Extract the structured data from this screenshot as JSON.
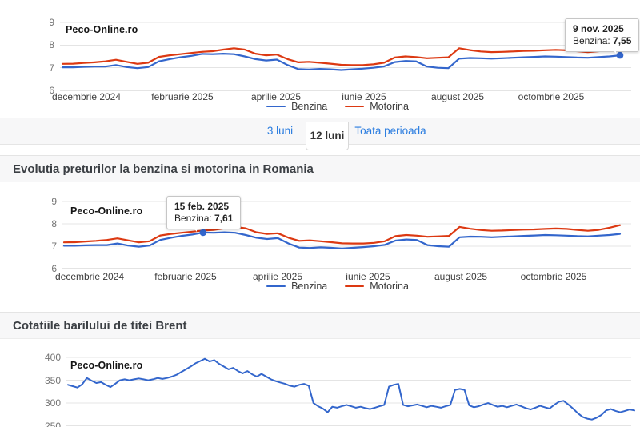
{
  "watermark": "Peco-Online.ro",
  "tabs": {
    "items": [
      {
        "label": "3 luni"
      },
      {
        "label": "12 luni"
      },
      {
        "label": "Toata perioada"
      }
    ],
    "active": "12 luni"
  },
  "headings": {
    "fuel": "Evolutia preturilor la benzina si motorina in Romania",
    "brent": "Cotatiile barilului de titei Brent"
  },
  "colors": {
    "benzina": "#3366cc",
    "motorina": "#dc3912",
    "brent_line": "#3366cc",
    "grid": "#e4e4e4",
    "baseline": "#c9c9c9",
    "tab_link": "#2b7de0"
  },
  "chart_data": [
    {
      "id": "fuel-prices-top",
      "type": "line",
      "title": "",
      "ylim": [
        6,
        9
      ],
      "y_ticks": [
        9,
        8,
        7,
        6
      ],
      "x_labels": [
        "decembrie 2024",
        "februarie 2025",
        "aprilie 2025",
        "iunie 2025",
        "august 2025",
        "octombrie 2025"
      ],
      "legend_position": "bottom",
      "grid": true,
      "series": [
        {
          "name": "Benzina",
          "color": "#3366cc",
          "values": [
            7.02,
            7.02,
            7.04,
            7.05,
            7.05,
            7.12,
            7.03,
            6.98,
            7.03,
            7.28,
            7.38,
            7.46,
            7.52,
            7.61,
            7.6,
            7.62,
            7.6,
            7.5,
            7.38,
            7.32,
            7.36,
            7.12,
            6.94,
            6.92,
            6.95,
            6.93,
            6.9,
            6.93,
            6.96,
            7.0,
            7.06,
            7.25,
            7.3,
            7.28,
            7.05,
            7.0,
            6.98,
            7.4,
            7.43,
            7.42,
            7.4,
            7.42,
            7.44,
            7.46,
            7.48,
            7.5,
            7.49,
            7.47,
            7.45,
            7.44,
            7.47,
            7.5,
            7.55
          ]
        },
        {
          "name": "Motorina",
          "color": "#dc3912",
          "values": [
            7.17,
            7.18,
            7.21,
            7.24,
            7.28,
            7.35,
            7.26,
            7.17,
            7.22,
            7.48,
            7.55,
            7.6,
            7.65,
            7.7,
            7.73,
            7.8,
            7.86,
            7.8,
            7.62,
            7.55,
            7.58,
            7.38,
            7.24,
            7.26,
            7.22,
            7.18,
            7.13,
            7.12,
            7.12,
            7.15,
            7.22,
            7.45,
            7.5,
            7.47,
            7.42,
            7.44,
            7.46,
            7.86,
            7.78,
            7.72,
            7.69,
            7.7,
            7.72,
            7.74,
            7.75,
            7.77,
            7.79,
            7.77,
            7.73,
            7.69,
            7.73,
            7.82,
            7.94
          ]
        }
      ],
      "marker": {
        "series": "Benzina",
        "index": 52
      },
      "tooltip": {
        "date": "9 nov. 2025",
        "series_label": "Benzina:",
        "value": "7,55"
      }
    },
    {
      "id": "fuel-prices-main",
      "type": "line",
      "title": "",
      "ylim": [
        6,
        9
      ],
      "y_ticks": [
        9,
        8,
        7,
        6
      ],
      "x_labels": [
        "decembrie 2024",
        "februarie 2025",
        "aprilie 2025",
        "iunie 2025",
        "august 2025",
        "octombrie 2025"
      ],
      "legend_position": "bottom",
      "grid": true,
      "series": [
        {
          "name": "Benzina",
          "color": "#3366cc",
          "values": [
            7.02,
            7.02,
            7.04,
            7.05,
            7.05,
            7.12,
            7.03,
            6.98,
            7.03,
            7.28,
            7.38,
            7.46,
            7.52,
            7.61,
            7.6,
            7.62,
            7.6,
            7.5,
            7.38,
            7.32,
            7.36,
            7.12,
            6.94,
            6.92,
            6.95,
            6.93,
            6.9,
            6.93,
            6.96,
            7.0,
            7.06,
            7.25,
            7.3,
            7.28,
            7.05,
            7.0,
            6.98,
            7.4,
            7.43,
            7.42,
            7.4,
            7.42,
            7.44,
            7.46,
            7.48,
            7.5,
            7.49,
            7.47,
            7.45,
            7.44,
            7.47,
            7.5,
            7.55
          ]
        },
        {
          "name": "Motorina",
          "color": "#dc3912",
          "values": [
            7.17,
            7.18,
            7.21,
            7.24,
            7.28,
            7.35,
            7.26,
            7.17,
            7.22,
            7.48,
            7.55,
            7.6,
            7.65,
            7.7,
            7.73,
            7.8,
            7.86,
            7.8,
            7.62,
            7.55,
            7.58,
            7.38,
            7.24,
            7.26,
            7.22,
            7.18,
            7.13,
            7.12,
            7.12,
            7.15,
            7.22,
            7.45,
            7.5,
            7.47,
            7.42,
            7.44,
            7.46,
            7.86,
            7.78,
            7.72,
            7.69,
            7.7,
            7.72,
            7.74,
            7.75,
            7.77,
            7.79,
            7.77,
            7.73,
            7.69,
            7.73,
            7.82,
            7.94
          ]
        }
      ],
      "marker": {
        "series": "Benzina",
        "index": 13
      },
      "tooltip": {
        "date": "15 feb. 2025",
        "series_label": "Benzina:",
        "value": "7,61"
      }
    },
    {
      "id": "brent-barrel",
      "type": "line",
      "title": "",
      "ylim": [
        250,
        400
      ],
      "y_ticks": [
        400,
        350,
        300,
        250
      ],
      "x_labels": [],
      "grid": true,
      "series": [
        {
          "name": "Brent",
          "color": "#3366cc",
          "values": [
            340,
            337,
            334,
            341,
            355,
            349,
            344,
            346,
            340,
            335,
            342,
            350,
            352,
            350,
            352,
            354,
            352,
            350,
            352,
            355,
            353,
            355,
            358,
            362,
            368,
            374,
            380,
            387,
            392,
            397,
            391,
            394,
            386,
            380,
            374,
            377,
            370,
            365,
            370,
            363,
            358,
            364,
            358,
            352,
            348,
            345,
            342,
            338,
            336,
            340,
            342,
            338,
            300,
            293,
            288,
            280,
            292,
            290,
            293,
            296,
            293,
            290,
            292,
            289,
            287,
            290,
            293,
            296,
            336,
            340,
            342,
            296,
            293,
            295,
            297,
            294,
            291,
            294,
            292,
            290,
            293,
            296,
            329,
            331,
            329,
            295,
            291,
            293,
            297,
            300,
            296,
            292,
            294,
            291,
            294,
            297,
            293,
            289,
            286,
            290,
            294,
            291,
            288,
            296,
            303,
            305,
            297,
            288,
            278,
            270,
            266,
            264,
            268,
            274,
            284,
            287,
            283,
            280,
            283,
            286,
            284
          ]
        }
      ]
    }
  ]
}
